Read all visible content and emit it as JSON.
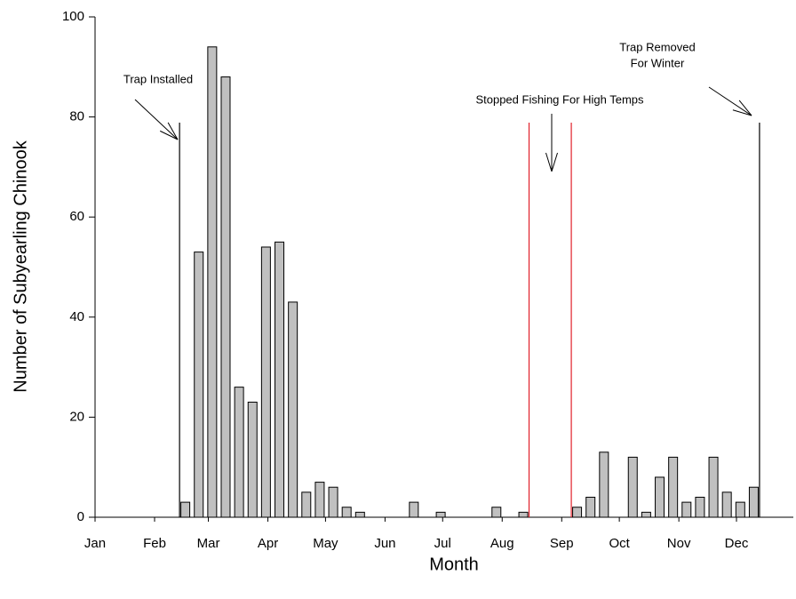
{
  "chart_data": {
    "type": "bar",
    "xlabel": "Month",
    "ylabel": "Number of Subyearling Chinook",
    "color": "#c0c0c0",
    "x": [
      47,
      54,
      61,
      68,
      75,
      82,
      89,
      96,
      103,
      110,
      117,
      124,
      131,
      138,
      166,
      180,
      209,
      223,
      251,
      258,
      265,
      280,
      287,
      294,
      301,
      308,
      315,
      322,
      329,
      336,
      343
    ],
    "values": [
      3,
      53,
      94,
      88,
      26,
      23,
      54,
      55,
      43,
      5,
      7,
      6,
      2,
      1,
      3,
      1,
      2,
      1,
      2,
      4,
      13,
      12,
      1,
      8,
      12,
      3,
      4,
      12,
      5,
      3,
      6
    ],
    "xlim": [
      0,
      365
    ],
    "xticks": [
      {
        "value": 0,
        "label": "Jan"
      },
      {
        "value": 31,
        "label": "Feb"
      },
      {
        "value": 59,
        "label": "Mar"
      },
      {
        "value": 90,
        "label": "Apr"
      },
      {
        "value": 120,
        "label": "May"
      },
      {
        "value": 151,
        "label": "Jun"
      },
      {
        "value": 181,
        "label": "Jul"
      },
      {
        "value": 212,
        "label": "Aug"
      },
      {
        "value": 243,
        "label": "Sep"
      },
      {
        "value": 273,
        "label": "Oct"
      },
      {
        "value": 304,
        "label": "Nov"
      },
      {
        "value": 334,
        "label": "Dec"
      }
    ],
    "ylim": [
      0,
      100
    ],
    "yticks": [
      0,
      20,
      40,
      60,
      80,
      100
    ],
    "event_lines": [
      {
        "x": 44,
        "color": "#000000"
      },
      {
        "x": 226,
        "color": "#e0202a"
      },
      {
        "x": 248,
        "color": "#e0202a"
      },
      {
        "x": 346,
        "color": "#000000"
      }
    ],
    "annotations": [
      {
        "text": [
          "Trap Installed"
        ]
      },
      {
        "text": [
          "Stopped Fishing For High Temps"
        ]
      },
      {
        "text": [
          "Trap Removed",
          "For Winter"
        ]
      }
    ]
  }
}
